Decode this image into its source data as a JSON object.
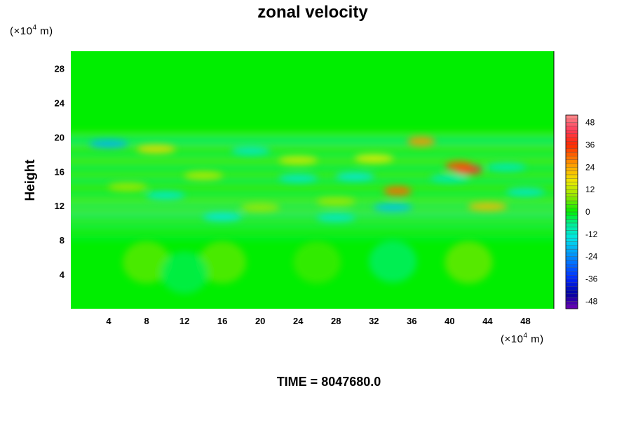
{
  "chart_data": {
    "type": "heatmap",
    "title": "zonal velocity",
    "ylabel": "Height",
    "x_unit": {
      "prefix": "(×10",
      "exp": "4",
      "suffix": " m)"
    },
    "y_unit": {
      "prefix": "(×10",
      "exp": "4",
      "suffix": " m)"
    },
    "xlim": [
      0,
      51
    ],
    "ylim": [
      0,
      30
    ],
    "x_ticks": [
      4,
      8,
      12,
      16,
      20,
      24,
      28,
      32,
      36,
      40,
      44,
      48
    ],
    "y_ticks": [
      4,
      8,
      12,
      16,
      20,
      24,
      28
    ],
    "colorbar": {
      "range": [
        -52,
        52
      ],
      "ticks": [
        48,
        36,
        24,
        12,
        0,
        -12,
        -24,
        -36,
        -48
      ]
    },
    "annotation": "TIME = 8047680.0",
    "features": [
      {
        "x": 42,
        "y": 16.2,
        "value": 40
      },
      {
        "x": 41,
        "y": 16.6,
        "value": 32
      },
      {
        "x": 34.5,
        "y": 13.7,
        "value": 30
      },
      {
        "x": 37,
        "y": 19.5,
        "value": 26
      },
      {
        "x": 9,
        "y": 18.6,
        "value": 18
      },
      {
        "x": 32,
        "y": 17.5,
        "value": 16
      },
      {
        "x": 24,
        "y": 17.3,
        "value": 14
      },
      {
        "x": 44,
        "y": 11.9,
        "value": 22
      },
      {
        "x": 6,
        "y": 14.2,
        "value": 10
      },
      {
        "x": 14,
        "y": 15.5,
        "value": 12
      },
      {
        "x": 28,
        "y": 12.5,
        "value": 10
      },
      {
        "x": 20,
        "y": 11.8,
        "value": 10
      },
      {
        "x": 4,
        "y": 19.2,
        "value": -20
      },
      {
        "x": 19,
        "y": 18.4,
        "value": -12
      },
      {
        "x": 30,
        "y": 15.4,
        "value": -14
      },
      {
        "x": 24,
        "y": 15.2,
        "value": -12
      },
      {
        "x": 10,
        "y": 13.2,
        "value": -12
      },
      {
        "x": 34,
        "y": 11.8,
        "value": -18
      },
      {
        "x": 16,
        "y": 10.7,
        "value": -14
      },
      {
        "x": 28,
        "y": 10.6,
        "value": -12
      },
      {
        "x": 46,
        "y": 16.5,
        "value": -10
      },
      {
        "x": 48,
        "y": 13.6,
        "value": -12
      },
      {
        "x": 40,
        "y": 15.2,
        "value": -10
      },
      {
        "x": 8,
        "y": 5.4,
        "value": 6
      },
      {
        "x": 16,
        "y": 5.4,
        "value": 6
      },
      {
        "x": 42,
        "y": 5.4,
        "value": 7
      },
      {
        "x": 26,
        "y": 5.4,
        "value": 4
      },
      {
        "x": 12,
        "y": 4.2,
        "value": -4
      },
      {
        "x": 34,
        "y": 5.5,
        "value": -5
      }
    ]
  }
}
